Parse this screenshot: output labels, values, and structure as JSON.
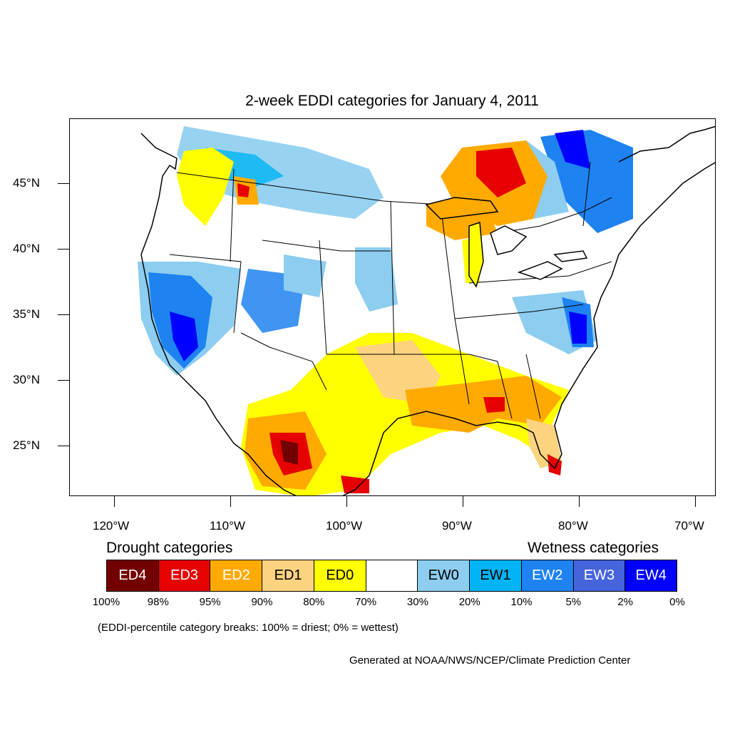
{
  "title": "2-week EDDI categories for January 4, 2011",
  "map": {
    "lat_labels": [
      "45°N",
      "40°N",
      "35°N",
      "30°N",
      "25°N"
    ],
    "lon_labels": [
      "120°W",
      "110°W",
      "100°W",
      "90°W",
      "80°W",
      "70°W"
    ]
  },
  "legend": {
    "drought_heading": "Drought categories",
    "wetness_heading": "Wetness categories",
    "categories": [
      {
        "label": "ED4",
        "color": "#730000",
        "text_color": "#ffffff"
      },
      {
        "label": "ED3",
        "color": "#e60000",
        "text_color": "#ffffff"
      },
      {
        "label": "ED2",
        "color": "#ffaa00",
        "text_color": "#ffffff"
      },
      {
        "label": "ED1",
        "color": "#fcd37f",
        "text_color": "#000000"
      },
      {
        "label": "ED0",
        "color": "#ffff00",
        "text_color": "#000000"
      },
      {
        "label": "",
        "color": "#ffffff",
        "text_color": "#000000"
      },
      {
        "label": "EW0",
        "color": "#8ccdf0",
        "text_color": "#000000"
      },
      {
        "label": "EW1",
        "color": "#00b4f5",
        "text_color": "#000000"
      },
      {
        "label": "EW2",
        "color": "#1e82f0",
        "text_color": "#ffffff"
      },
      {
        "label": "EW3",
        "color": "#4664dc",
        "text_color": "#ffffff"
      },
      {
        "label": "EW4",
        "color": "#0000ff",
        "text_color": "#ffffff"
      }
    ],
    "percentiles": [
      "100%",
      "98%",
      "95%",
      "90%",
      "80%",
      "70%",
      "30%",
      "20%",
      "10%",
      "5%",
      "2%",
      "0%"
    ]
  },
  "note": "(EDDI-percentile category breaks: 100% = driest; 0% = wettest)",
  "credit": "Generated at NOAA/NWS/NCEP/Climate Prediction Center"
}
